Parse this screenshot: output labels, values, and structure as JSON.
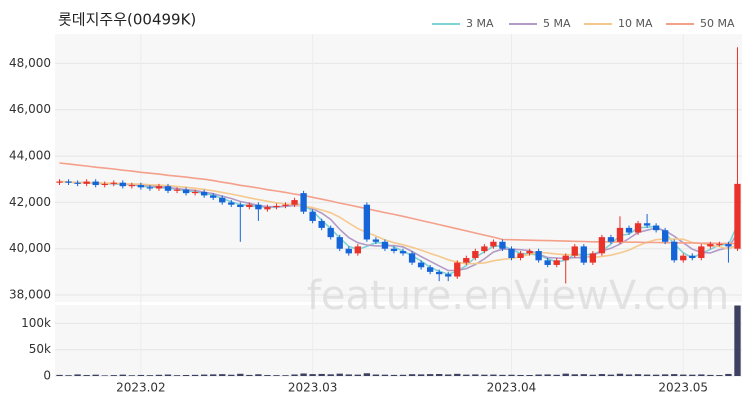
{
  "chart_data": {
    "type": "candlestick",
    "title": "롯데지주우(00499K)",
    "watermark": "feature.enViewV.com",
    "categories": [
      null,
      null,
      null,
      null,
      null,
      null,
      null,
      null,
      null,
      "2023.02",
      null,
      null,
      null,
      null,
      null,
      null,
      null,
      null,
      null,
      null,
      null,
      null,
      null,
      null,
      null,
      null,
      null,
      null,
      "2023.03",
      null,
      null,
      null,
      null,
      null,
      null,
      null,
      null,
      null,
      null,
      null,
      null,
      null,
      null,
      null,
      null,
      null,
      null,
      null,
      null,
      null,
      "2023.04",
      null,
      null,
      null,
      null,
      null,
      null,
      null,
      null,
      null,
      null,
      null,
      null,
      null,
      null,
      null,
      null,
      null,
      null,
      "2023.05",
      null,
      null,
      null,
      null,
      null,
      null
    ],
    "open": [
      42850,
      42900,
      42850,
      42800,
      42900,
      42750,
      42800,
      42850,
      42700,
      42750,
      42650,
      42600,
      42700,
      42500,
      42550,
      42400,
      42450,
      42300,
      42200,
      42000,
      41900,
      41800,
      41900,
      41700,
      41800,
      41850,
      41900,
      42400,
      41600,
      41200,
      40900,
      40500,
      40000,
      39800,
      41900,
      40400,
      40300,
      40000,
      39900,
      39800,
      39400,
      39200,
      39000,
      38900,
      38800,
      39400,
      39600,
      39900,
      40100,
      40300,
      40000,
      39600,
      39800,
      39900,
      39500,
      39300,
      39500,
      39700,
      40100,
      39400,
      39800,
      40500,
      40300,
      40900,
      40700,
      41100,
      41000,
      40800,
      40300,
      39500,
      39700,
      39600,
      40100,
      40200,
      40200,
      40000
    ],
    "high": [
      43000,
      43000,
      42950,
      43000,
      43000,
      42900,
      42950,
      42950,
      42850,
      42850,
      42750,
      42800,
      42800,
      42650,
      42650,
      42550,
      42550,
      42400,
      42300,
      42100,
      42000,
      42000,
      42000,
      41900,
      41950,
      42000,
      42200,
      42500,
      41700,
      41300,
      41000,
      40600,
      40100,
      40200,
      42000,
      40500,
      40400,
      40100,
      40000,
      39900,
      39500,
      39300,
      39100,
      39000,
      39500,
      39700,
      40000,
      40200,
      40400,
      40400,
      40100,
      39900,
      40000,
      40000,
      39600,
      39600,
      39800,
      40200,
      40200,
      39900,
      40600,
      40600,
      41400,
      41000,
      41200,
      41500,
      41100,
      40900,
      40400,
      39800,
      39800,
      40200,
      40300,
      40300,
      40300,
      48700
    ],
    "low": [
      42750,
      42750,
      42700,
      42700,
      42650,
      42650,
      42700,
      42600,
      42600,
      42550,
      42500,
      42500,
      42400,
      42400,
      42300,
      42300,
      42200,
      42100,
      41900,
      41800,
      40300,
      41700,
      41200,
      41600,
      41700,
      41750,
      41800,
      41500,
      41100,
      40800,
      40400,
      39900,
      39700,
      39700,
      40300,
      40200,
      39900,
      39800,
      39700,
      39300,
      39100,
      38900,
      38600,
      38600,
      38700,
      39300,
      39500,
      39800,
      40000,
      39900,
      39500,
      39500,
      39700,
      39400,
      39200,
      39200,
      38500,
      39600,
      39300,
      39300,
      39700,
      40200,
      40200,
      40600,
      40600,
      40900,
      40700,
      40200,
      39400,
      39400,
      39500,
      39500,
      40000,
      40100,
      39400,
      39900
    ],
    "close": [
      42900,
      42850,
      42800,
      42900,
      42750,
      42800,
      42850,
      42700,
      42750,
      42650,
      42600,
      42700,
      42500,
      42550,
      42400,
      42450,
      42300,
      42200,
      42000,
      41900,
      41800,
      41900,
      41700,
      41800,
      41850,
      41900,
      42100,
      41600,
      41200,
      40900,
      40500,
      40000,
      39800,
      40100,
      40400,
      40300,
      40000,
      39900,
      39800,
      39400,
      39200,
      39000,
      38900,
      38800,
      39400,
      39600,
      39900,
      40100,
      40300,
      40000,
      39600,
      39800,
      39900,
      39500,
      39300,
      39500,
      39700,
      40100,
      39400,
      39800,
      40500,
      40300,
      40900,
      40700,
      41100,
      41000,
      40800,
      40300,
      39500,
      39700,
      39600,
      40100,
      40200,
      40200,
      40100,
      42800
    ],
    "up_color": "#e8322a",
    "down_color": "#1565d8",
    "ylim": [
      37700,
      49270
    ],
    "yticks": [
      {
        "value": 38000,
        "label": "38,000"
      },
      {
        "value": 40000,
        "label": "40,000"
      },
      {
        "value": 42000,
        "label": "42,000"
      },
      {
        "value": 44000,
        "label": "44,000"
      },
      {
        "value": 46000,
        "label": "46,000"
      },
      {
        "value": 48000,
        "label": "48,000"
      }
    ],
    "grid": true,
    "legend": "top-right",
    "series": [
      {
        "name": "3 MA",
        "color": "#7fd3d6",
        "values": [
          42900,
          42880,
          42850,
          42850,
          42820,
          42820,
          42800,
          42780,
          42770,
          42700,
          42670,
          42650,
          42600,
          42580,
          42480,
          42470,
          42380,
          42320,
          42170,
          42030,
          41900,
          41870,
          41800,
          41800,
          41780,
          41850,
          41950,
          41870,
          41630,
          41230,
          40870,
          40470,
          40100,
          39970,
          40100,
          40270,
          40230,
          40070,
          39900,
          39700,
          39470,
          39200,
          39030,
          38900,
          39030,
          39270,
          39630,
          39870,
          40100,
          40130,
          39970,
          39800,
          39770,
          39730,
          39570,
          39430,
          39500,
          39770,
          39730,
          39770,
          39900,
          40200,
          40570,
          40630,
          40900,
          40930,
          40970,
          40700,
          40200,
          39830,
          39600,
          39800,
          39970,
          40170,
          40170,
          41030
        ]
      },
      {
        "name": "5 MA",
        "color": "#b39bc8",
        "values": [
          42900,
          42880,
          42850,
          42860,
          42840,
          42820,
          42820,
          42800,
          42770,
          42750,
          42710,
          42680,
          42640,
          42600,
          42550,
          42520,
          42440,
          42380,
          42270,
          42170,
          42040,
          41960,
          41860,
          41820,
          41810,
          41830,
          41870,
          41860,
          41730,
          41540,
          41260,
          40840,
          40480,
          40260,
          40160,
          40120,
          40120,
          40140,
          40080,
          39880,
          39660,
          39460,
          39260,
          39060,
          39060,
          39140,
          39320,
          39560,
          39860,
          39980,
          39980,
          39960,
          39920,
          39760,
          39620,
          39600,
          39580,
          39620,
          39600,
          39700,
          39900,
          40020,
          40200,
          40440,
          40700,
          40800,
          40900,
          40780,
          40540,
          40260,
          39980,
          39840,
          39820,
          39960,
          40040,
          40680
        ]
      },
      {
        "name": "10 MA",
        "color": "#f5c98e",
        "values": [
          42900,
          42880,
          42850,
          42860,
          42840,
          42830,
          42830,
          42810,
          42800,
          42790,
          42760,
          42750,
          42720,
          42690,
          42650,
          42610,
          42560,
          42500,
          42430,
          42360,
          42280,
          42200,
          42120,
          42050,
          41980,
          41930,
          41910,
          41850,
          41770,
          41670,
          41550,
          41360,
          41110,
          40870,
          40700,
          40550,
          40380,
          40260,
          40170,
          40060,
          39940,
          39800,
          39670,
          39520,
          39420,
          39350,
          39360,
          39390,
          39480,
          39540,
          39580,
          39660,
          39760,
          39840,
          39820,
          39770,
          39740,
          39740,
          39650,
          39620,
          39670,
          39720,
          39820,
          39940,
          40130,
          40280,
          40390,
          40420,
          40420,
          40410,
          40270,
          40230,
          40150,
          40090,
          39990,
          40160
        ]
      },
      {
        "name": "50 MA",
        "color": "#f4a08a",
        "values": [
          43700,
          43660,
          43610,
          43570,
          43520,
          43480,
          43440,
          43390,
          43350,
          43300,
          43260,
          43220,
          43170,
          43130,
          43090,
          43040,
          43000,
          42940,
          42870,
          42810,
          42740,
          42680,
          42620,
          42550,
          42490,
          42430,
          42360,
          42300,
          42220,
          42140,
          42060,
          41970,
          41890,
          41810,
          41730,
          41640,
          41560,
          41480,
          41400,
          41310,
          41220,
          41130,
          41040,
          40950,
          40860,
          40770,
          40680,
          40590,
          40500,
          40400,
          40390,
          40380,
          40370,
          40360,
          40350,
          40340,
          40330,
          40320,
          40310,
          40300,
          40300,
          40290,
          40290,
          40280,
          40280,
          40270,
          40270,
          40260,
          40260,
          40250,
          40250,
          40240,
          40240,
          40230,
          40230,
          40220
        ]
      }
    ],
    "volume": {
      "color": "#3d4060",
      "ylim": [
        0,
        135000
      ],
      "yticks": [
        0,
        {
          "value": 50000,
          "label": "50k"
        },
        {
          "value": 100000,
          "label": "100k"
        }
      ],
      "values": [
        2100,
        1500,
        3000,
        1800,
        2500,
        1200,
        1700,
        2600,
        1400,
        2000,
        1600,
        2300,
        2800,
        1500,
        1900,
        2200,
        2700,
        3100,
        3500,
        2400,
        4200,
        2000,
        3300,
        1800,
        1600,
        1500,
        2900,
        4800,
        3600,
        3900,
        3200,
        4500,
        3000,
        2600,
        5200,
        2800,
        2500,
        2100,
        2300,
        3400,
        3100,
        3600,
        3800,
        2900,
        4100,
        2600,
        3000,
        2500,
        2700,
        2200,
        2400,
        2000,
        1900,
        2800,
        3000,
        2300,
        4500,
        3200,
        3500,
        2400,
        3700,
        2600,
        4300,
        2900,
        3400,
        2700,
        2500,
        3100,
        3600,
        2700,
        2500,
        3000,
        2100,
        1800,
        3900,
        134000
      ]
    }
  }
}
